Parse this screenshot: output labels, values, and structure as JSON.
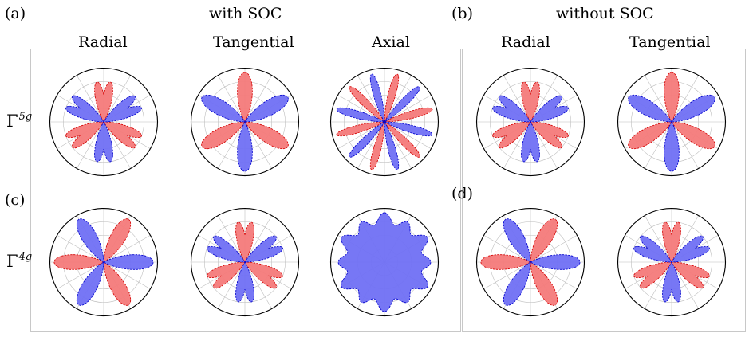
{
  "labels": {
    "panel_a": "(a)",
    "panel_b": "(b)",
    "panel_c": "(c)",
    "panel_d": "(d)",
    "with_soc": "with SOC",
    "without_soc": "without SOC"
  },
  "columns": [
    "Radial",
    "Tangential",
    "Axial",
    "Radial",
    "Tangential"
  ],
  "rows": [
    {
      "symbol": "Γ",
      "superscript": "5g"
    },
    {
      "symbol": "Γ",
      "superscript": "4g"
    }
  ],
  "colors": {
    "red_fill": "#f47a7a",
    "red_stroke": "#d40000",
    "blue_fill": "#7070f4",
    "blue_stroke": "#0000cc",
    "grid": "#bbbbbb",
    "circle": "#000000"
  },
  "plots": [
    {
      "id": "r1-radial",
      "lobes": 6,
      "rot": 0,
      "blue": 1,
      "red": 1,
      "split": true
    },
    {
      "id": "r1-tang",
      "lobes": 6,
      "rot": 0,
      "blue": 1,
      "red": 1,
      "split": false
    },
    {
      "id": "r1-axial",
      "lobes": 12,
      "rot": 15,
      "blue": 1,
      "red": 1,
      "split": false
    },
    {
      "id": "r1-radial-b",
      "lobes": 6,
      "rot": 0,
      "blue": 1,
      "red": 1,
      "split": true
    },
    {
      "id": "r1-tang-b",
      "lobes": 6,
      "rot": 0,
      "blue": 1,
      "red": 1,
      "split": false
    },
    {
      "id": "r2-radial",
      "lobes": 6,
      "rot": 30,
      "blue": 1,
      "red": 1,
      "split": false
    },
    {
      "id": "r2-tang",
      "lobes": 6,
      "rot": 0,
      "blue": 1,
      "red": 1,
      "split": true
    },
    {
      "id": "r2-axial",
      "lobes": 0,
      "rot": 0,
      "blue": 1,
      "red": 0,
      "split": false
    },
    {
      "id": "r2-radial-b",
      "lobes": 6,
      "rot": 30,
      "blue": 1,
      "red": 1,
      "split": false
    },
    {
      "id": "r2-tang-b",
      "lobes": 6,
      "rot": 0,
      "blue": 1,
      "red": 1,
      "split": true
    }
  ]
}
